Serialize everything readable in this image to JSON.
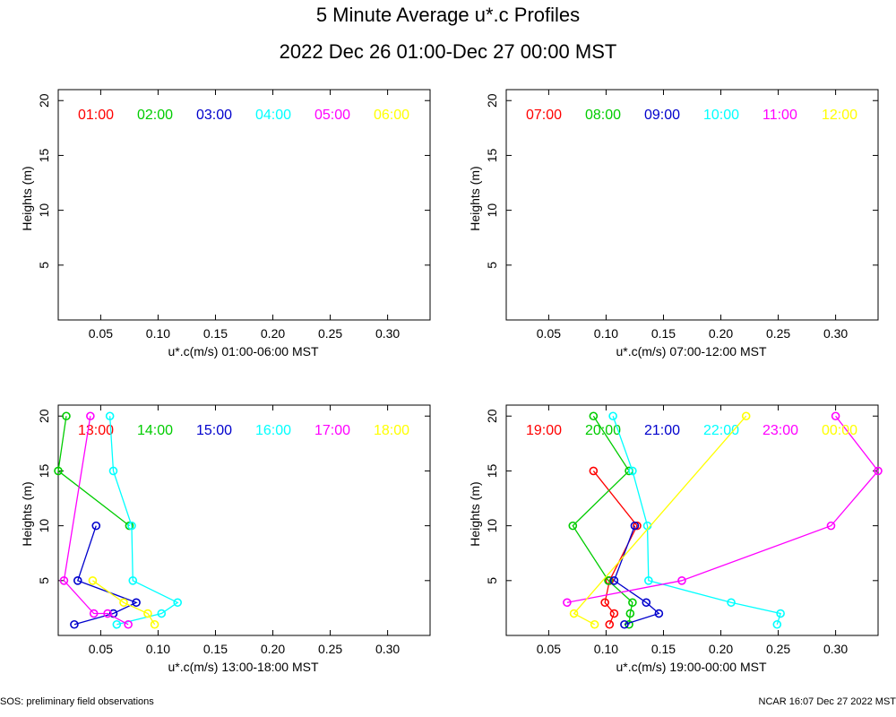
{
  "title": "5 Minute Average u*.c Profiles",
  "subtitle": "2022 Dec 26 01:00-Dec 27 00:00 MST",
  "footer_left": "SOS: preliminary field observations",
  "footer_right": "NCAR 16:07 Dec 27 2022 MST",
  "colors": [
    "#ff0000",
    "#00cc00",
    "#0000cc",
    "#00ffff",
    "#ff00ff",
    "#ffff00"
  ],
  "chart_data": [
    {
      "type": "line",
      "xlabel": "u*.c(m/s) 01:00-06:00 MST",
      "ylabel": "Heights (m)",
      "xlim": [
        0.013,
        0.337
      ],
      "ylim": [
        0,
        21
      ],
      "xticks": [
        "0.05",
        "0.10",
        "0.15",
        "0.20",
        "0.25",
        "0.30"
      ],
      "yticks": [
        "5",
        "10",
        "15",
        "20"
      ],
      "series": [
        {
          "name": "01:00",
          "points": []
        },
        {
          "name": "02:00",
          "points": []
        },
        {
          "name": "03:00",
          "points": []
        },
        {
          "name": "04:00",
          "points": []
        },
        {
          "name": "05:00",
          "points": []
        },
        {
          "name": "06:00",
          "points": []
        }
      ]
    },
    {
      "type": "line",
      "xlabel": "u*.c(m/s) 07:00-12:00 MST",
      "ylabel": "Heights (m)",
      "xlim": [
        0.013,
        0.337
      ],
      "ylim": [
        0,
        21
      ],
      "xticks": [
        "0.05",
        "0.10",
        "0.15",
        "0.20",
        "0.25",
        "0.30"
      ],
      "yticks": [
        "5",
        "10",
        "15",
        "20"
      ],
      "series": [
        {
          "name": "07:00",
          "points": []
        },
        {
          "name": "08:00",
          "points": []
        },
        {
          "name": "09:00",
          "points": []
        },
        {
          "name": "10:00",
          "points": []
        },
        {
          "name": "11:00",
          "points": []
        },
        {
          "name": "12:00",
          "points": []
        }
      ]
    },
    {
      "type": "line",
      "xlabel": "u*.c(m/s) 13:00-18:00 MST",
      "ylabel": "Heights (m)",
      "xlim": [
        0.013,
        0.337
      ],
      "ylim": [
        0,
        21
      ],
      "xticks": [
        "0.05",
        "0.10",
        "0.15",
        "0.20",
        "0.25",
        "0.30"
      ],
      "yticks": [
        "5",
        "10",
        "15",
        "20"
      ],
      "series": [
        {
          "name": "13:00",
          "points": []
        },
        {
          "name": "14:00",
          "points": [
            [
              0.02,
              20
            ],
            [
              0.013,
              15
            ],
            [
              0.075,
              10
            ]
          ]
        },
        {
          "name": "15:00",
          "points": [
            [
              0.046,
              10
            ],
            [
              0.03,
              5
            ],
            [
              0.081,
              3
            ],
            [
              0.061,
              2
            ],
            [
              0.027,
              1
            ]
          ]
        },
        {
          "name": "16:00",
          "points": [
            [
              0.058,
              20
            ],
            [
              0.061,
              15
            ],
            [
              0.077,
              10
            ],
            [
              0.078,
              5
            ],
            [
              0.117,
              3
            ],
            [
              0.103,
              2
            ],
            [
              0.064,
              1
            ]
          ]
        },
        {
          "name": "17:00",
          "points": [
            [
              0.041,
              20
            ],
            [
              0.018,
              5
            ],
            [
              0.044,
              2
            ],
            [
              0.056,
              2
            ],
            [
              0.074,
              1
            ]
          ]
        },
        {
          "name": "18:00",
          "points": [
            [
              0.043,
              5
            ],
            [
              0.07,
              3
            ],
            [
              0.091,
              2
            ],
            [
              0.097,
              1
            ]
          ]
        }
      ]
    },
    {
      "type": "line",
      "xlabel": "u*.c(m/s) 19:00-00:00 MST",
      "ylabel": "Heights (m)",
      "xlim": [
        0.013,
        0.337
      ],
      "ylim": [
        0,
        21
      ],
      "xticks": [
        "0.05",
        "0.10",
        "0.15",
        "0.20",
        "0.25",
        "0.30"
      ],
      "yticks": [
        "5",
        "10",
        "15",
        "20"
      ],
      "series": [
        {
          "name": "19:00",
          "points": [
            [
              0.089,
              15
            ],
            [
              0.127,
              10
            ],
            [
              0.103,
              5
            ],
            [
              0.099,
              3
            ],
            [
              0.107,
              2
            ],
            [
              0.103,
              1
            ]
          ]
        },
        {
          "name": "20:00",
          "points": [
            [
              0.089,
              20
            ],
            [
              0.12,
              15
            ],
            [
              0.071,
              10
            ],
            [
              0.102,
              5
            ],
            [
              0.123,
              3
            ],
            [
              0.121,
              2
            ],
            [
              0.12,
              1
            ]
          ]
        },
        {
          "name": "21:00",
          "points": [
            [
              0.125,
              10
            ],
            [
              0.107,
              5
            ],
            [
              0.135,
              3
            ],
            [
              0.146,
              2
            ],
            [
              0.116,
              1
            ]
          ]
        },
        {
          "name": "22:00",
          "points": [
            [
              0.106,
              20
            ],
            [
              0.123,
              15
            ],
            [
              0.136,
              10
            ],
            [
              0.137,
              5
            ],
            [
              0.209,
              3
            ],
            [
              0.252,
              2
            ],
            [
              0.249,
              1
            ]
          ]
        },
        {
          "name": "23:00",
          "points": [
            [
              0.3,
              20
            ],
            [
              0.337,
              15
            ],
            [
              0.296,
              10
            ],
            [
              0.166,
              5
            ],
            [
              0.066,
              3
            ]
          ]
        },
        {
          "name": "00:00",
          "points": [
            [
              0.222,
              20
            ],
            [
              0.072,
              2
            ],
            [
              0.09,
              1
            ]
          ]
        }
      ]
    }
  ]
}
